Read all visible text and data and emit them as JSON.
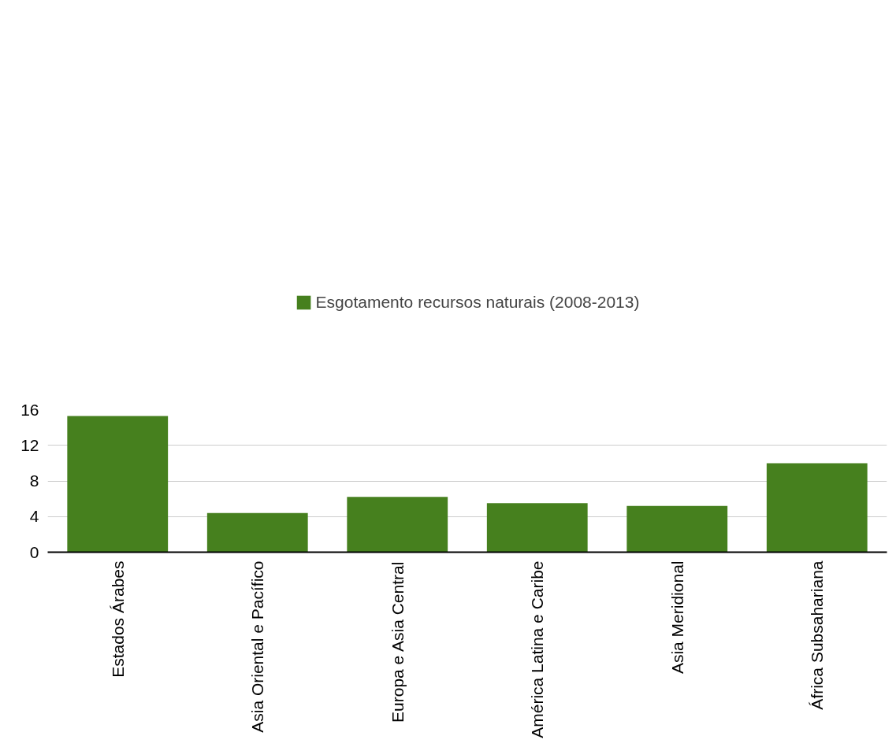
{
  "chart_data": {
    "type": "bar",
    "categories": [
      "Estados Árabes",
      "Asia Oriental e Pacífico",
      "Europa e Asia Central",
      "América Latina e Caribe",
      "Asia Meridional",
      "África Subsahariana"
    ],
    "series": [
      {
        "name": "Esgotamento recursos naturais (2008-2013)",
        "color": "#46801e",
        "values": [
          15.3,
          4.4,
          6.2,
          5.5,
          5.2,
          10.0
        ]
      }
    ],
    "ylim": [
      0,
      16
    ],
    "yticks": [
      0,
      4,
      8,
      12,
      16
    ],
    "grid": "y",
    "legend": "top"
  }
}
